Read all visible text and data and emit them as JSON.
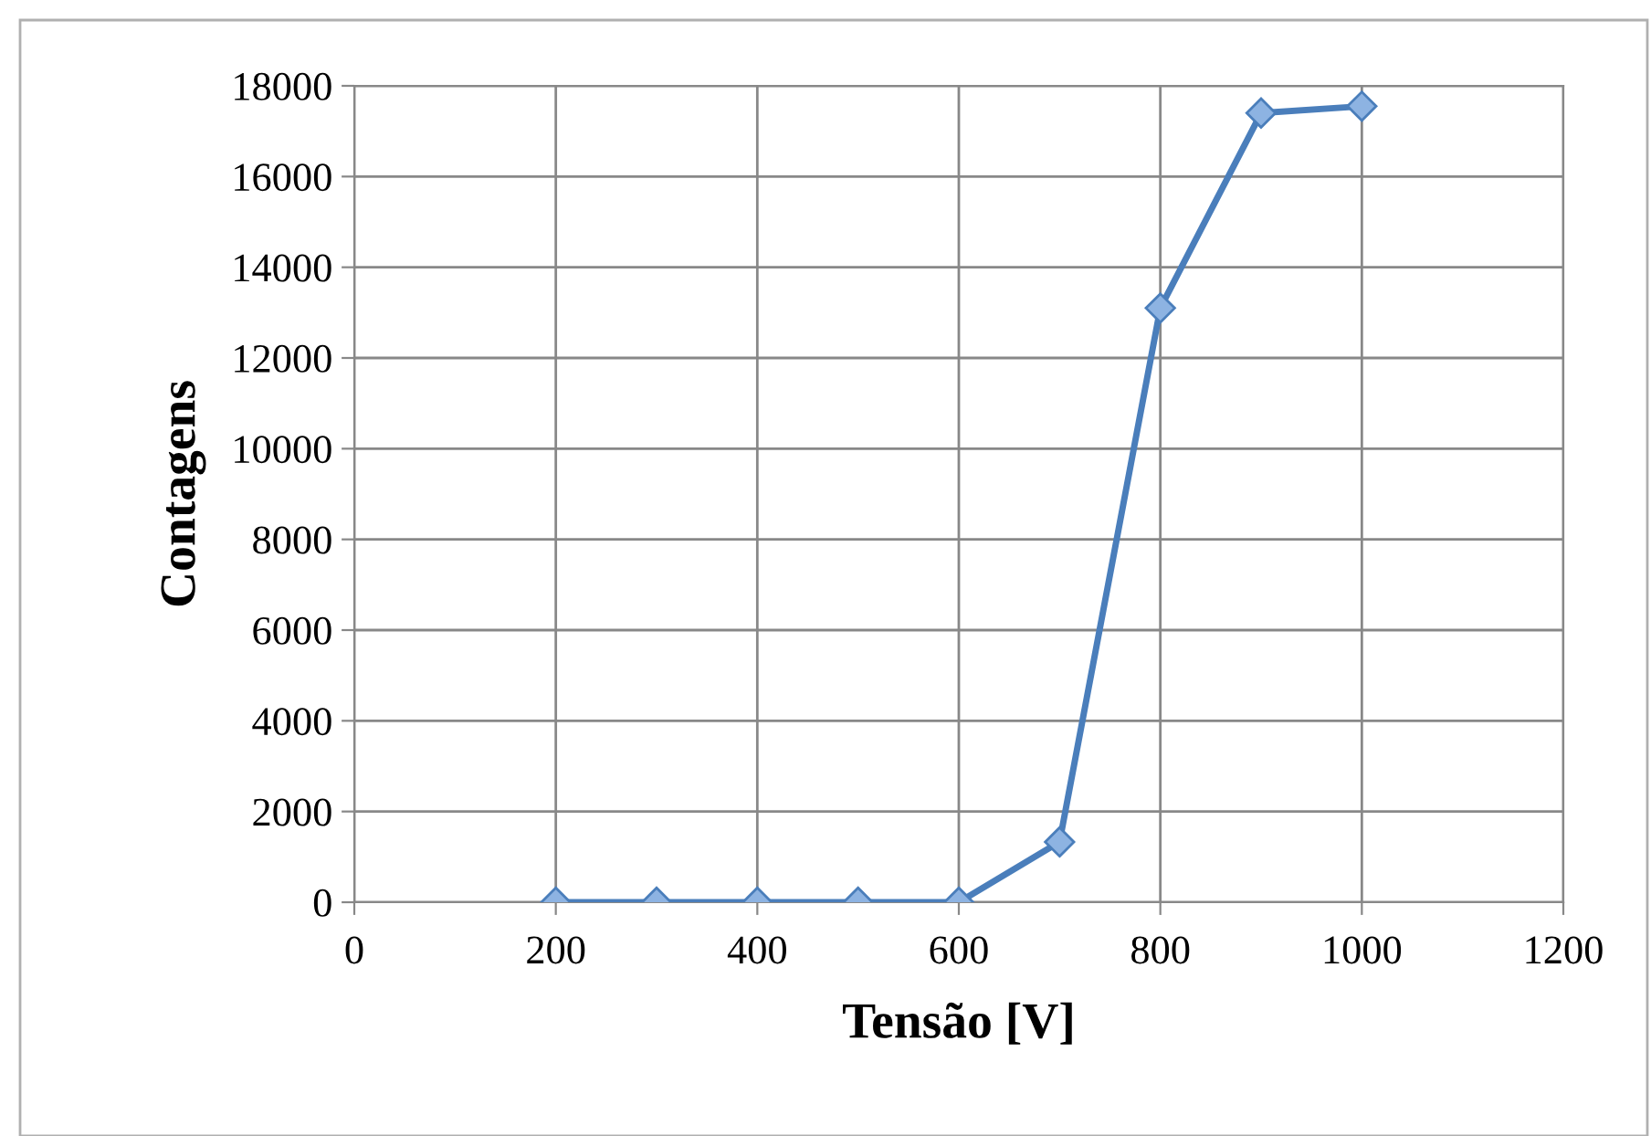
{
  "chart_data": {
    "type": "line",
    "xlabel": "Tensão [V]",
    "ylabel": "Contagens",
    "x": [
      200,
      300,
      400,
      500,
      600,
      700,
      800,
      900,
      1000
    ],
    "series": [
      {
        "color": "#4a7ebb",
        "values": [
          0,
          0,
          0,
          0,
          0,
          1330,
          13100,
          17400,
          17550
        ]
      }
    ],
    "xlim": [
      0,
      1200
    ],
    "xticks": [
      0,
      200,
      400,
      600,
      800,
      1000,
      1200
    ],
    "ylim": [
      0,
      18000
    ],
    "yticks": [
      0,
      2000,
      4000,
      6000,
      8000,
      10000,
      12000,
      14000,
      16000,
      18000
    ],
    "grid": true,
    "marker": "diamond",
    "line_style": "solid"
  }
}
